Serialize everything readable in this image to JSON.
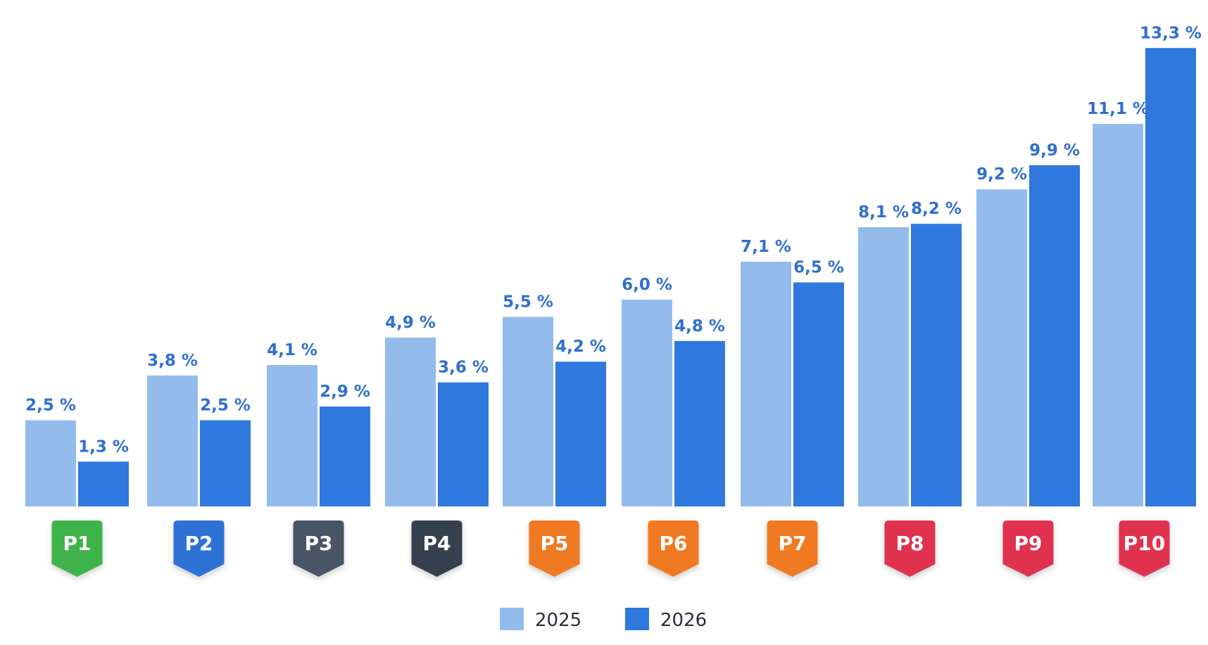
{
  "chart_data": {
    "type": "bar",
    "title": "",
    "xlabel": "",
    "ylabel": "",
    "categories": [
      "P1",
      "P2",
      "P3",
      "P4",
      "P5",
      "P6",
      "P7",
      "P8",
      "P9",
      "P10"
    ],
    "category_colors": [
      "#3db34a",
      "#2f72d6",
      "#4a5466",
      "#34404f",
      "#f07a22",
      "#f07a22",
      "#f07a22",
      "#e0304f",
      "#e0304f",
      "#e0304f"
    ],
    "series": [
      {
        "name": "2025",
        "color": "#93bced",
        "values": [
          2.5,
          3.8,
          4.1,
          4.9,
          5.5,
          6.0,
          7.1,
          8.1,
          9.2,
          11.1
        ],
        "labels": [
          "2,5 %",
          "3,8 %",
          "4,1 %",
          "4,9 %",
          "5,5 %",
          "6,0 %",
          "7,1 %",
          "8,1 %",
          "9,2 %",
          "11,1 %"
        ]
      },
      {
        "name": "2026",
        "color": "#2f78de",
        "values": [
          1.3,
          2.5,
          2.9,
          3.6,
          4.2,
          4.8,
          6.5,
          8.2,
          9.9,
          13.3
        ],
        "labels": [
          "1,3 %",
          "2,5 %",
          "2,9 %",
          "3,6 %",
          "4,2 %",
          "4,8 %",
          "6,5 %",
          "8,2 %",
          "9,9 %",
          "13,3 %"
        ]
      }
    ],
    "value_label_color": "#2f6fd0",
    "ylim": [
      0,
      14
    ],
    "grid": false,
    "legend_position": "bottom-center"
  }
}
